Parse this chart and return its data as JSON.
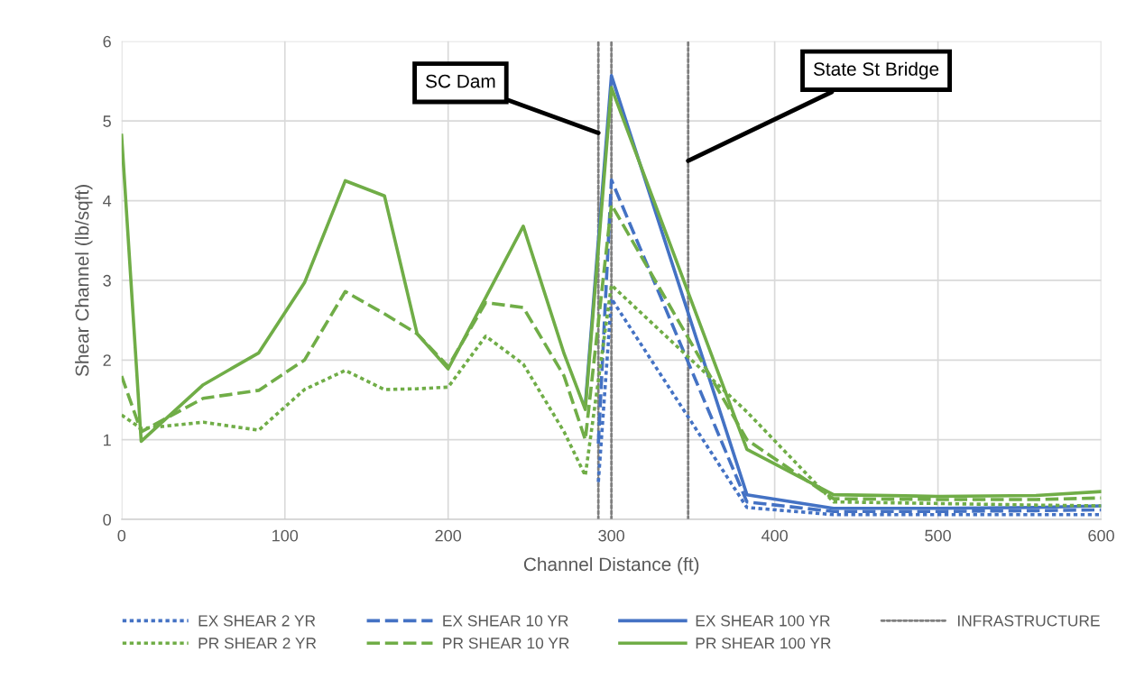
{
  "chart_data": {
    "type": "line",
    "xlabel": "Channel Distance (ft)",
    "ylabel": "Shear Channel (lb/sqft)",
    "xlim": [
      0,
      600
    ],
    "xticks": [
      0,
      100,
      200,
      300,
      400,
      500,
      600
    ],
    "ylim": [
      0,
      6
    ],
    "yticks": [
      0,
      1,
      2,
      3,
      4,
      5,
      6
    ],
    "grid": true,
    "legend": "bottom",
    "series": [
      {
        "name": "EX SHEAR 2 YR",
        "color": "#4472c4",
        "line_style": "dotted",
        "x": [
          292,
          300,
          383,
          436,
          500,
          560,
          600
        ],
        "values": [
          0.47,
          2.77,
          0.15,
          0.06,
          0.06,
          0.06,
          0.06
        ]
      },
      {
        "name": "EX SHEAR 10 YR",
        "color": "#4472c4",
        "line_style": "dashed",
        "x": [
          292,
          300,
          383,
          436,
          500,
          560,
          600
        ],
        "values": [
          0.95,
          4.26,
          0.22,
          0.1,
          0.1,
          0.11,
          0.12
        ]
      },
      {
        "name": "EX SHEAR 100 YR",
        "color": "#4472c4",
        "line_style": "solid",
        "x": [
          284,
          300,
          383,
          436,
          500,
          560,
          600
        ],
        "values": [
          1.43,
          5.57,
          0.31,
          0.14,
          0.14,
          0.15,
          0.17
        ]
      },
      {
        "name": "PR SHEAR 2 YR",
        "color": "#70ad47",
        "line_style": "dotted",
        "x": [
          0,
          12,
          50,
          84,
          112,
          137,
          161,
          181,
          200,
          223,
          246,
          271,
          284,
          300,
          383,
          436,
          500,
          560,
          600
        ],
        "values": [
          1.31,
          1.14,
          1.22,
          1.12,
          1.63,
          1.87,
          1.63,
          1.64,
          1.66,
          2.3,
          1.95,
          1.1,
          0.55,
          2.94,
          1.35,
          0.22,
          0.2,
          0.18,
          0.17
        ]
      },
      {
        "name": "PR SHEAR 10 YR",
        "color": "#70ad47",
        "line_style": "dashed",
        "x": [
          0,
          12,
          50,
          84,
          112,
          137,
          161,
          181,
          200,
          223,
          246,
          271,
          284,
          300,
          383,
          436,
          500,
          560,
          600
        ],
        "values": [
          1.8,
          1.1,
          1.52,
          1.62,
          2.0,
          2.86,
          2.58,
          2.33,
          1.92,
          2.72,
          2.66,
          1.8,
          1.0,
          3.95,
          1.0,
          0.26,
          0.25,
          0.25,
          0.27
        ]
      },
      {
        "name": "PR SHEAR 100 YR",
        "color": "#70ad47",
        "line_style": "solid",
        "x": [
          0,
          12,
          50,
          84,
          112,
          137,
          161,
          181,
          200,
          246,
          271,
          284,
          300,
          383,
          436,
          500,
          560,
          600
        ],
        "values": [
          4.82,
          0.98,
          1.69,
          2.09,
          2.97,
          4.25,
          4.06,
          2.33,
          1.89,
          3.68,
          2.08,
          1.38,
          5.42,
          0.88,
          0.31,
          0.29,
          0.3,
          0.35
        ]
      }
    ],
    "ref_lines": [
      {
        "axis": "x",
        "value": 292,
        "label": "INFRASTRUCTURE",
        "color": "#7f7f7f",
        "line_style": "dotted"
      },
      {
        "axis": "x",
        "value": 300,
        "color": "#7f7f7f",
        "line_style": "dotted"
      },
      {
        "axis": "x",
        "value": 347,
        "color": "#7f7f7f",
        "line_style": "dotted"
      }
    ],
    "annotations": [
      {
        "text": "SC Dam",
        "x": 292,
        "y": 4.85
      },
      {
        "text": "State St Bridge",
        "x": 347,
        "y": 4.5
      }
    ]
  }
}
